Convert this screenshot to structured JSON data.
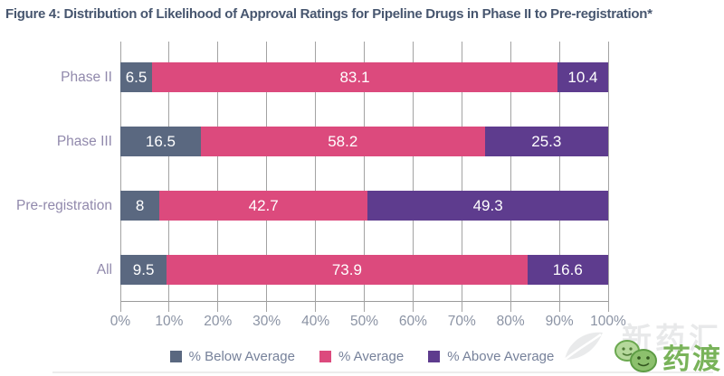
{
  "title": "Figure 4: Distribution of Likelihood of Approval Ratings for Pipeline Drugs in Phase II to Pre-registration*",
  "chart_data": {
    "type": "bar",
    "orientation": "horizontal",
    "stacked": true,
    "categories": [
      "Phase II",
      "Phase III",
      "Pre-registration",
      "All"
    ],
    "series": [
      {
        "name": "% Below Average",
        "color": "#5a6880",
        "values": [
          6.5,
          16.5,
          8,
          9.5
        ]
      },
      {
        "name": "% Average",
        "color": "#dc4a7d",
        "values": [
          83.1,
          58.2,
          42.7,
          73.9
        ]
      },
      {
        "name": "% Above Average",
        "color": "#5e3c8e",
        "values": [
          10.4,
          25.3,
          49.3,
          16.6
        ]
      }
    ],
    "x_ticks": [
      "0%",
      "10%",
      "20%",
      "30%",
      "40%",
      "50%",
      "60%",
      "70%",
      "80%",
      "90%",
      "100%"
    ],
    "xlim": [
      0,
      100
    ],
    "grid": true,
    "legend_position": "bottom",
    "value_labels_inside_bars": true
  },
  "colors": {
    "title": "#47566f",
    "category_label": "#9189ac",
    "tick_label": "#8b93a4",
    "legend_label": "#76819a",
    "gridline": "#a3a3a3"
  },
  "watermark": {
    "brand_text": "药渡",
    "faint_text": "新药汇",
    "brand_color": "#79b35a"
  }
}
